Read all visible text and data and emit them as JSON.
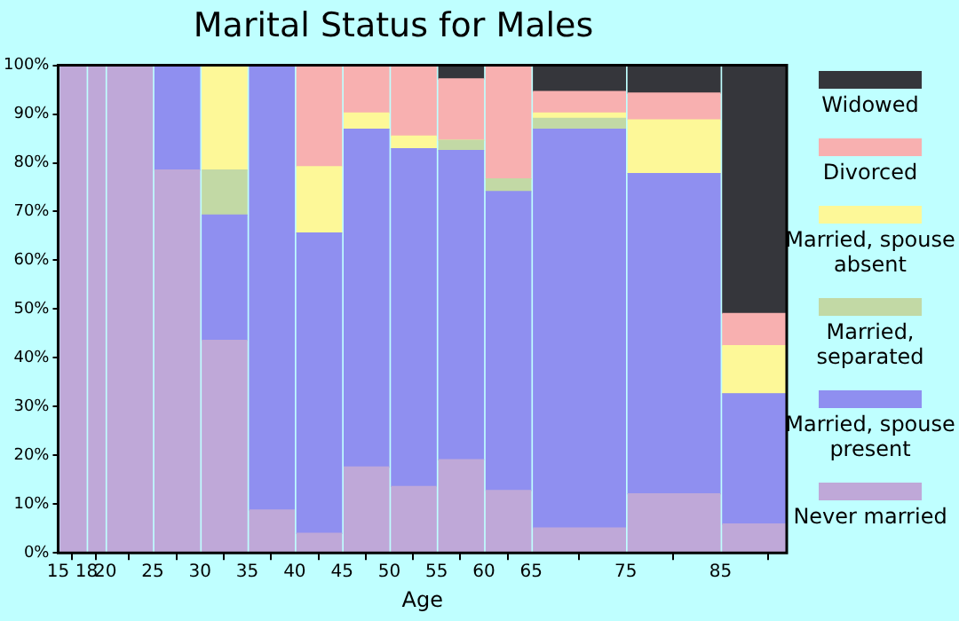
{
  "chart_data": {
    "type": "bar",
    "title": "Marital Status for Males",
    "xlabel": "Age",
    "stacked": true,
    "x": [
      16.5,
      19,
      22.5,
      27.5,
      32.5,
      37.5,
      42.5,
      47.5,
      52.5,
      57.5,
      62.5,
      70,
      80,
      88.5
    ],
    "xlim": [
      15,
      92
    ],
    "xticks": [
      15,
      18,
      20,
      25,
      30,
      35,
      40,
      45,
      50,
      55,
      60,
      65,
      75,
      85
    ],
    "ylim": [
      0,
      100
    ],
    "yticks": [
      {
        "value": 0,
        "label": "0%"
      },
      {
        "value": 10,
        "label": "10%"
      },
      {
        "value": 20,
        "label": "20%"
      },
      {
        "value": 30,
        "label": "30%"
      },
      {
        "value": 40,
        "label": "40%"
      },
      {
        "value": 50,
        "label": "50%"
      },
      {
        "value": 60,
        "label": "60%"
      },
      {
        "value": 70,
        "label": "70%"
      },
      {
        "value": 80,
        "label": "80%"
      },
      {
        "value": 90,
        "label": "90%"
      },
      {
        "value": 100,
        "label": "100%"
      }
    ],
    "grid": false,
    "legend": "right",
    "series": [
      {
        "name": "Never married",
        "color": "#bfa8d8",
        "values": [
          100,
          100,
          100,
          78.5,
          43.6,
          8.8,
          4.0,
          17.6,
          13.6,
          19.1,
          12.8,
          5.1,
          12.1,
          5.9
        ]
      },
      {
        "name": "Married, spouse present",
        "color": "#8f8ff0",
        "values": [
          0,
          0,
          0,
          21.5,
          25.7,
          91.2,
          61.6,
          69.3,
          69.3,
          63.4,
          61.3,
          81.8,
          65.7,
          26.7
        ]
      },
      {
        "name": "Married, separated",
        "color": "#c2d9a5",
        "values": [
          0,
          0,
          0,
          0,
          9.2,
          0,
          0,
          0,
          0,
          2.1,
          2.6,
          2.2,
          0,
          0
        ]
      },
      {
        "name": "Married, spouse absent",
        "color": "#fdf898",
        "values": [
          0,
          0,
          0,
          0,
          21.5,
          0,
          13.6,
          3.3,
          2.6,
          0,
          0,
          1.1,
          11.0,
          9.9
        ]
      },
      {
        "name": "Divorced",
        "color": "#f8b0b0",
        "values": [
          0,
          0,
          0,
          0,
          0,
          0,
          20.8,
          9.8,
          14.5,
          12.6,
          23.3,
          4.4,
          5.5,
          6.6
        ]
      },
      {
        "name": "Widowed",
        "color": "#35363b",
        "values": [
          0,
          0,
          0,
          0,
          0,
          0,
          0,
          0,
          0,
          2.8,
          0,
          5.4,
          5.7,
          50.9
        ]
      }
    ]
  }
}
